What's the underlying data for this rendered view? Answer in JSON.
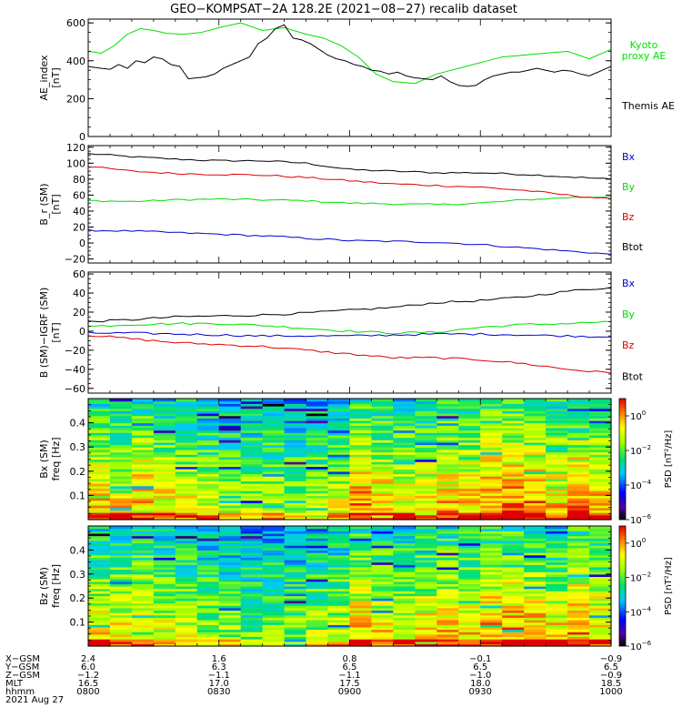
{
  "title": "GEO−KOMPSAT−2A 128.2E (2021−08−27) recalib dataset",
  "colors": {
    "black": "#000000",
    "green": "#00e000",
    "red": "#e00000",
    "blue": "#0000d0"
  },
  "chart_data": [
    {
      "type": "line",
      "ylabel_lines": [
        "AE_index",
        "[nT]"
      ],
      "ylim": [
        0,
        620
      ],
      "yticks": [
        0,
        200,
        400,
        600
      ],
      "ytick_labels": [
        "0",
        "200",
        "400",
        "600"
      ],
      "legend": [
        {
          "name": "Kyoto\nproxy AE",
          "color": "#00e000"
        },
        {
          "name": "Themis AE",
          "color": "#000000"
        }
      ],
      "series": [
        {
          "name": "Kyoto proxy AE",
          "color": "#00e000",
          "x": [
            0,
            3,
            6,
            9,
            12,
            15,
            18,
            22,
            26,
            30,
            35,
            40,
            45,
            50,
            54,
            58,
            62,
            66,
            70,
            75,
            80,
            85,
            90,
            95,
            100,
            105,
            110,
            115,
            120
          ],
          "values": [
            450,
            440,
            480,
            540,
            570,
            560,
            545,
            540,
            550,
            575,
            600,
            560,
            575,
            540,
            520,
            480,
            420,
            330,
            290,
            280,
            330,
            360,
            390,
            420,
            430,
            440,
            450,
            410,
            460
          ]
        },
        {
          "name": "Themis AE",
          "color": "#000000",
          "x": [
            0,
            3,
            5,
            7,
            9,
            11,
            13,
            15,
            17,
            19,
            21,
            23,
            25,
            27,
            29,
            31,
            33,
            35,
            37,
            39,
            41,
            43,
            45,
            47,
            49,
            51,
            53,
            55,
            57,
            59,
            61,
            63,
            65,
            67,
            69,
            71,
            73,
            75,
            77,
            79,
            81,
            83,
            85,
            87,
            89,
            91,
            93,
            95,
            97,
            99,
            101,
            103,
            105,
            107,
            109,
            111,
            113,
            115,
            117,
            120
          ],
          "values": [
            370,
            360,
            355,
            380,
            360,
            400,
            390,
            420,
            410,
            380,
            370,
            305,
            310,
            315,
            330,
            360,
            380,
            400,
            420,
            490,
            520,
            570,
            590,
            520,
            510,
            490,
            460,
            430,
            410,
            400,
            380,
            370,
            350,
            345,
            330,
            340,
            320,
            310,
            305,
            300,
            320,
            290,
            270,
            265,
            270,
            300,
            320,
            330,
            340,
            340,
            350,
            360,
            350,
            340,
            350,
            345,
            330,
            320,
            340,
            370
          ]
        }
      ]
    },
    {
      "type": "line",
      "ylabel_lines": [
        "B_r (SM)",
        "[nT]"
      ],
      "ylim": [
        -25,
        122
      ],
      "yticks": [
        -20,
        0,
        20,
        40,
        60,
        80,
        100,
        120
      ],
      "ytick_labels": [
        "−20",
        "0",
        "20",
        "40",
        "60",
        "80",
        "100",
        "120"
      ],
      "legend": [
        {
          "name": "Bx",
          "color": "#0000d0"
        },
        {
          "name": "By",
          "color": "#00e000"
        },
        {
          "name": "Bz",
          "color": "#e00000"
        },
        {
          "name": "Btot",
          "color": "#000000"
        }
      ],
      "series": [
        {
          "name": "Btot",
          "color": "#000000",
          "x": [
            0,
            10,
            20,
            30,
            40,
            50,
            60,
            70,
            80,
            90,
            100,
            110,
            120
          ],
          "values": [
            112,
            108,
            105,
            103,
            103,
            100,
            92,
            90,
            88,
            88,
            86,
            83,
            80
          ]
        },
        {
          "name": "By",
          "color": "#00e000",
          "x": [
            0,
            10,
            20,
            30,
            40,
            50,
            60,
            70,
            80,
            90,
            100,
            110,
            120
          ],
          "values": [
            53,
            52,
            54,
            55,
            54,
            53,
            50,
            49,
            48,
            50,
            54,
            57,
            58
          ]
        },
        {
          "name": "Bz",
          "color": "#e00000",
          "x": [
            0,
            10,
            20,
            30,
            40,
            50,
            60,
            70,
            80,
            90,
            100,
            110,
            120
          ],
          "values": [
            96,
            90,
            87,
            86,
            85,
            82,
            78,
            74,
            72,
            70,
            66,
            60,
            55
          ]
        },
        {
          "name": "Bx",
          "color": "#0000d0",
          "x": [
            0,
            10,
            20,
            30,
            40,
            50,
            60,
            70,
            80,
            90,
            100,
            110,
            120
          ],
          "values": [
            16,
            15,
            13,
            11,
            9,
            6,
            3,
            2,
            1,
            -2,
            -6,
            -10,
            -14
          ]
        }
      ]
    },
    {
      "type": "line",
      "ylabel_lines": [
        "B (SM)−IGRF (SM)",
        "[nT]"
      ],
      "ylim": [
        -65,
        62
      ],
      "yticks": [
        -60,
        -40,
        -20,
        0,
        20,
        40,
        60
      ],
      "ytick_labels": [
        "−60",
        "−40",
        "−20",
        "0",
        "20",
        "40",
        "60"
      ],
      "legend": [
        {
          "name": "Bx",
          "color": "#0000d0"
        },
        {
          "name": "By",
          "color": "#00e000"
        },
        {
          "name": "Bz",
          "color": "#e00000"
        },
        {
          "name": "Btot",
          "color": "#000000"
        }
      ],
      "series": [
        {
          "name": "Btot",
          "color": "#000000",
          "x": [
            0,
            10,
            20,
            30,
            40,
            50,
            60,
            70,
            80,
            90,
            100,
            110,
            120
          ],
          "values": [
            10,
            12,
            15,
            16,
            17,
            19,
            22,
            25,
            30,
            32,
            36,
            42,
            46
          ]
        },
        {
          "name": "By",
          "color": "#00e000",
          "x": [
            0,
            10,
            20,
            30,
            40,
            50,
            60,
            70,
            80,
            90,
            100,
            110,
            120
          ],
          "values": [
            5,
            7,
            8,
            8,
            6,
            3,
            0,
            -2,
            -1,
            4,
            7,
            8,
            10
          ]
        },
        {
          "name": "Bx",
          "color": "#0000d0",
          "x": [
            0,
            10,
            20,
            30,
            40,
            50,
            60,
            70,
            80,
            90,
            100,
            110,
            120
          ],
          "values": [
            -2,
            -2,
            -3,
            -4,
            -5,
            -5,
            -5,
            -4,
            -3,
            -3,
            -4,
            -5,
            -6
          ]
        },
        {
          "name": "Bz",
          "color": "#e00000",
          "x": [
            0,
            10,
            20,
            30,
            40,
            50,
            60,
            70,
            80,
            90,
            100,
            110,
            120
          ],
          "values": [
            -4,
            -8,
            -12,
            -14,
            -16,
            -20,
            -24,
            -28,
            -28,
            -30,
            -34,
            -40,
            -44
          ]
        }
      ]
    },
    {
      "type": "heatmap",
      "ylabel_lines": [
        "Bx (SM)",
        "freq [Hz]"
      ],
      "ylim": [
        0,
        0.5
      ],
      "yticks": [
        0.1,
        0.2,
        0.3,
        0.4
      ],
      "ytick_labels": [
        "0.1",
        "0.2",
        "0.3",
        "0.4"
      ],
      "zlabel": "PSD [nT²/Hz]",
      "zlim_log10": [
        -6,
        1
      ],
      "zticks": [
        {
          "exp": 0,
          "base": "10",
          "power": "0"
        },
        {
          "exp": -2,
          "base": "10",
          "power": "−2"
        },
        {
          "exp": -4,
          "base": "10",
          "power": "−4"
        },
        {
          "exp": -6,
          "base": "10",
          "power": "−6"
        }
      ],
      "time_columns": 24,
      "freq_rows": 50,
      "column_activity": [
        0.3,
        0.2,
        0.6,
        0.1,
        0.0,
        -0.4,
        -0.5,
        -0.7,
        -0.6,
        -0.9,
        -0.5,
        -0.3,
        0.8,
        0.4,
        0.1,
        0.3,
        0.5,
        0.4,
        0.9,
        1.0,
        0.8,
        0.3,
        1.0,
        0.5
      ]
    },
    {
      "type": "heatmap",
      "ylabel_lines": [
        "Bz (SM)",
        "freq [Hz]"
      ],
      "ylim": [
        0,
        0.5
      ],
      "yticks": [
        0.1,
        0.2,
        0.3,
        0.4
      ],
      "ytick_labels": [
        "0.1",
        "0.2",
        "0.3",
        "0.4"
      ],
      "zlabel": "PSD [nT²/Hz]",
      "zlim_log10": [
        -6,
        1
      ],
      "zticks": [
        {
          "exp": 0,
          "base": "10",
          "power": "0"
        },
        {
          "exp": -2,
          "base": "10",
          "power": "−2"
        },
        {
          "exp": -4,
          "base": "10",
          "power": "−4"
        },
        {
          "exp": -6,
          "base": "10",
          "power": "−6"
        }
      ],
      "time_columns": 24,
      "freq_rows": 50,
      "column_activity": [
        0.1,
        0.0,
        0.3,
        -0.2,
        -0.4,
        -0.7,
        -0.8,
        -1.0,
        -0.8,
        -1.0,
        -0.6,
        -0.4,
        0.5,
        0.2,
        0.0,
        0.2,
        0.4,
        0.3,
        0.7,
        0.8,
        0.6,
        0.2,
        0.8,
        0.3
      ]
    }
  ],
  "xaxis": {
    "range_minutes": [
      0,
      120
    ],
    "tick_minutes": [
      0,
      30,
      60,
      90,
      120
    ],
    "rows": [
      {
        "label": "X−GSM",
        "values": [
          "2.4",
          "1.6",
          "0.8",
          "−0.1",
          "−0.9"
        ]
      },
      {
        "label": "Y−GSM",
        "values": [
          "6.0",
          "6.3",
          "6.5",
          "6.5",
          "6.5"
        ]
      },
      {
        "label": "Z−GSM",
        "values": [
          "−1.2",
          "−1.1",
          "−1.1",
          "−1.0",
          "−0.9"
        ]
      },
      {
        "label": "MLT",
        "values": [
          "16.5",
          "17.0",
          "17.5",
          "18.0",
          "18.5"
        ]
      },
      {
        "label": "hhmm",
        "values": [
          "0800",
          "0830",
          "0900",
          "0930",
          "1000"
        ]
      }
    ],
    "date": "2021 Aug 27"
  }
}
